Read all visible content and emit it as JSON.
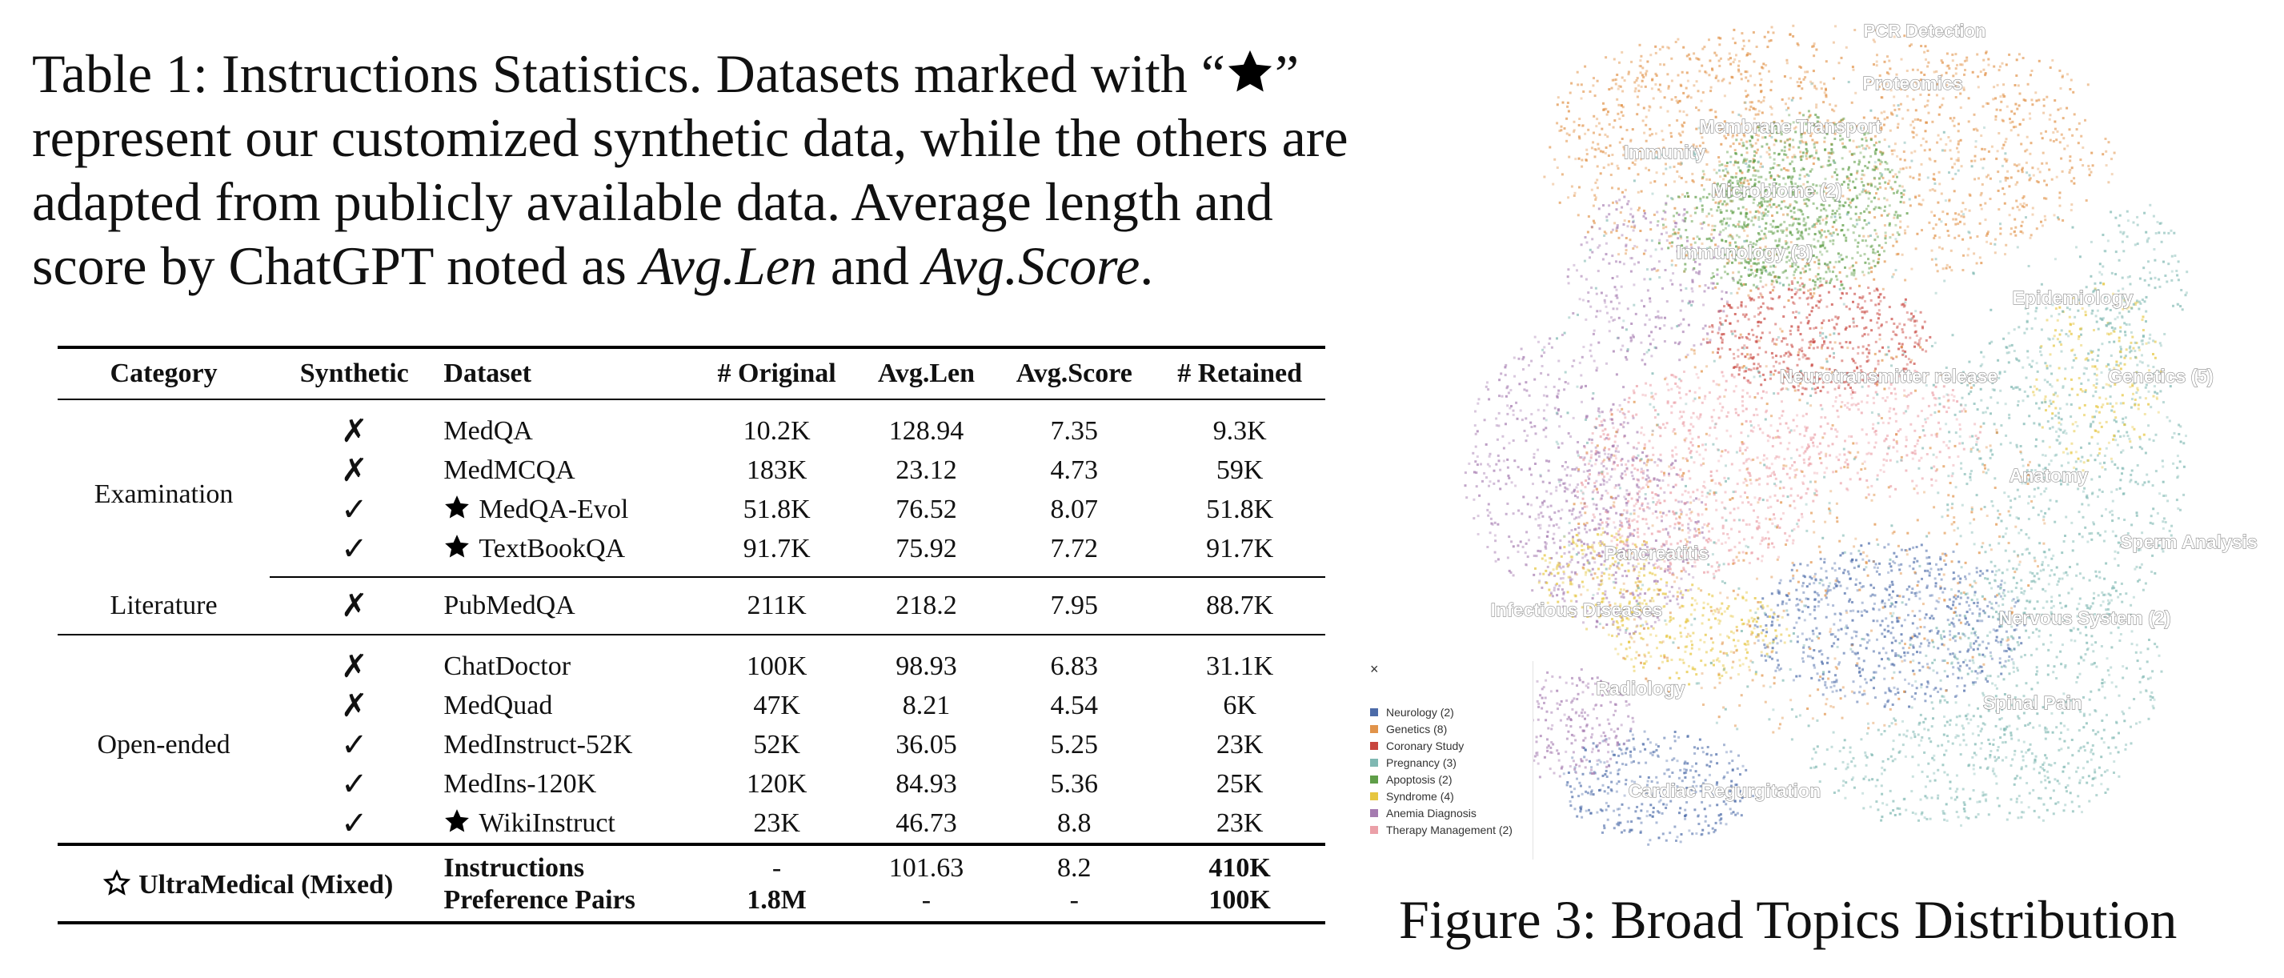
{
  "caption": {
    "prefix": "Table 1: Instructions Statistics. Datasets marked with “",
    "suffix_1": "” represent our customized synthetic data, while the others are adapted from publicly available data. Average length and score by ChatGPT noted as ",
    "italic_1": "Avg.Len",
    "middle": " and ",
    "italic_2": "Avg.Score",
    "end": "."
  },
  "table": {
    "headers": [
      "Category",
      "Synthetic",
      "Dataset",
      "# Original",
      "Avg.Len",
      "Avg.Score",
      "# Retained"
    ],
    "groups": [
      {
        "category": "Examination",
        "rows": [
          {
            "synthetic": "✗",
            "starred": false,
            "dataset": "MedQA",
            "original": "10.2K",
            "avg_len": "128.94",
            "avg_score": "7.35",
            "retained": "9.3K"
          },
          {
            "synthetic": "✗",
            "starred": false,
            "dataset": "MedMCQA",
            "original": "183K",
            "avg_len": "23.12",
            "avg_score": "4.73",
            "retained": "59K"
          },
          {
            "synthetic": "✓",
            "starred": true,
            "dataset": "MedQA-Evol",
            "original": "51.8K",
            "avg_len": "76.52",
            "avg_score": "8.07",
            "retained": "51.8K"
          },
          {
            "synthetic": "✓",
            "starred": true,
            "dataset": "TextBookQA",
            "original": "91.7K",
            "avg_len": "75.92",
            "avg_score": "7.72",
            "retained": "91.7K"
          }
        ]
      },
      {
        "category": "Literature",
        "rows": [
          {
            "synthetic": "✗",
            "starred": false,
            "dataset": "PubMedQA",
            "original": "211K",
            "avg_len": "218.2",
            "avg_score": "7.95",
            "retained": "88.7K"
          }
        ]
      },
      {
        "category": "Open-ended",
        "rows": [
          {
            "synthetic": "✗",
            "starred": false,
            "dataset": "ChatDoctor",
            "original": "100K",
            "avg_len": "98.93",
            "avg_score": "6.83",
            "retained": "31.1K"
          },
          {
            "synthetic": "✗",
            "starred": false,
            "dataset": "MedQuad",
            "original": "47K",
            "avg_len": "8.21",
            "avg_score": "4.54",
            "retained": "6K"
          },
          {
            "synthetic": "✓",
            "starred": false,
            "dataset": "MedInstruct-52K",
            "original": "52K",
            "avg_len": "36.05",
            "avg_score": "5.25",
            "retained": "23K"
          },
          {
            "synthetic": "✓",
            "starred": false,
            "dataset": "MedIns-120K",
            "original": "120K",
            "avg_len": "84.93",
            "avg_score": "5.36",
            "retained": "25K"
          },
          {
            "synthetic": "✓",
            "starred": true,
            "dataset": "WikiInstruct",
            "original": "23K",
            "avg_len": "46.73",
            "avg_score": "8.8",
            "retained": "23K"
          }
        ]
      }
    ],
    "summary": {
      "label": "UltraMedical (Mixed)",
      "rows": [
        {
          "dataset": "Instructions",
          "original": "-",
          "avg_len": "101.63",
          "avg_score": "8.2",
          "retained": "410K"
        },
        {
          "dataset": "Preference Pairs",
          "original": "1.8M",
          "avg_len": "-",
          "avg_score": "-",
          "retained": "100K"
        }
      ]
    }
  },
  "figure": {
    "caption": "Figure 3: Broad Topics Distribution",
    "topic_labels": [
      "PCR Detection",
      "Proteomics",
      "Membrane Transport",
      "Immunity",
      "Microbiome (2)",
      "Immunology (3)",
      "Epidemiology",
      "Neurotransmitter release",
      "Genetics (5)",
      "Anatomy",
      "Sperm Analysis",
      "Pancreatitis",
      "Infectious Diseases",
      "Nervous System (2)",
      "Radiology",
      "Spinal Pain",
      "Cardiac Regurgitation"
    ],
    "legend": {
      "close": "×",
      "items": [
        {
          "label": "Neurology (2)",
          "color": "#4c6ba8"
        },
        {
          "label": "Genetics (8)",
          "color": "#e1934a"
        },
        {
          "label": "Coronary Study",
          "color": "#c8453e"
        },
        {
          "label": "Pregnancy (3)",
          "color": "#7fb8b2"
        },
        {
          "label": "Apoptosis (2)",
          "color": "#5f9e48"
        },
        {
          "label": "Syndrome (4)",
          "color": "#e6c640"
        },
        {
          "label": "Anemia Diagnosis",
          "color": "#a57bb0"
        },
        {
          "label": "Therapy Management (2)",
          "color": "#eba0a8"
        }
      ]
    }
  }
}
